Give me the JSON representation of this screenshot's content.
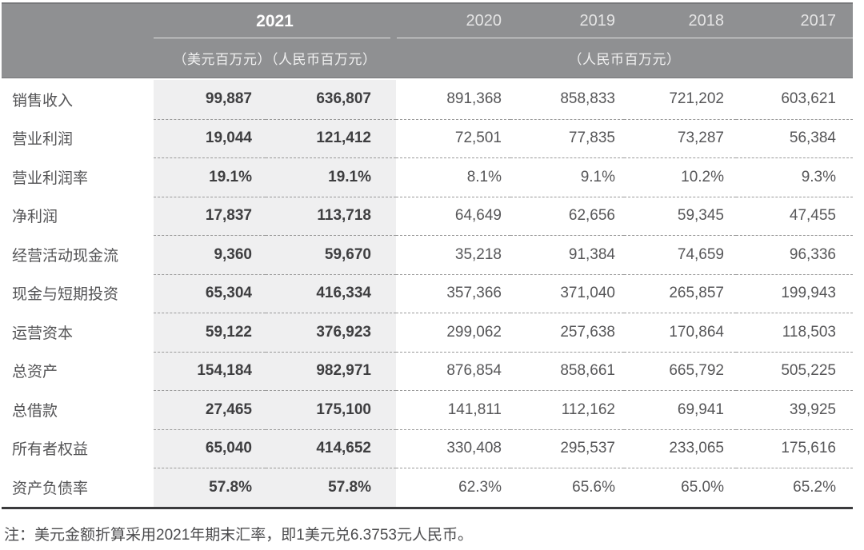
{
  "colors": {
    "header_bg": "#8F9092",
    "header_year_active": "#FFFFFF",
    "header_year_other": "#E5E5E5",
    "header_units": "#F1F1F1",
    "header_underline": "#E2E2E2",
    "row_shade": "#EFEFF0",
    "text_label": "#545456",
    "text_value": "#565658",
    "text_value_bold": "#3E3E40",
    "dashed_line": "#9A9A9A",
    "bottom_border": "#3B3B3D",
    "note_text": "#4B4B4D"
  },
  "table": {
    "header": {
      "year_highlight": "2021",
      "other_years": [
        "2020",
        "2019",
        "2018",
        "2017"
      ],
      "unit_highlight": "（美元百万元）（人民币百万元）",
      "unit_other": "（人民币百万元）"
    },
    "rows": [
      {
        "label": "销售收入",
        "usd": "99,887",
        "rmb": "636,807",
        "y2020": "891,368",
        "y2019": "858,833",
        "y2018": "721,202",
        "y2017": "603,621"
      },
      {
        "label": "营业利润",
        "usd": "19,044",
        "rmb": "121,412",
        "y2020": "72,501",
        "y2019": "77,835",
        "y2018": "73,287",
        "y2017": "56,384"
      },
      {
        "label": "营业利润率",
        "usd": "19.1%",
        "rmb": "19.1%",
        "y2020": "8.1%",
        "y2019": "9.1%",
        "y2018": "10.2%",
        "y2017": "9.3%"
      },
      {
        "label": "净利润",
        "usd": "17,837",
        "rmb": "113,718",
        "y2020": "64,649",
        "y2019": "62,656",
        "y2018": "59,345",
        "y2017": "47,455"
      },
      {
        "label": "经营活动现金流",
        "usd": "9,360",
        "rmb": "59,670",
        "y2020": "35,218",
        "y2019": "91,384",
        "y2018": "74,659",
        "y2017": "96,336"
      },
      {
        "label": "现金与短期投资",
        "usd": "65,304",
        "rmb": "416,334",
        "y2020": "357,366",
        "y2019": "371,040",
        "y2018": "265,857",
        "y2017": "199,943"
      },
      {
        "label": "运营资本",
        "usd": "59,122",
        "rmb": "376,923",
        "y2020": "299,062",
        "y2019": "257,638",
        "y2018": "170,864",
        "y2017": "118,503"
      },
      {
        "label": "总资产",
        "usd": "154,184",
        "rmb": "982,971",
        "y2020": "876,854",
        "y2019": "858,661",
        "y2018": "665,792",
        "y2017": "505,225"
      },
      {
        "label": "总借款",
        "usd": "27,465",
        "rmb": "175,100",
        "y2020": "141,811",
        "y2019": "112,162",
        "y2018": "69,941",
        "y2017": "39,925"
      },
      {
        "label": "所有者权益",
        "usd": "65,040",
        "rmb": "414,652",
        "y2020": "330,408",
        "y2019": "295,537",
        "y2018": "233,065",
        "y2017": "175,616"
      },
      {
        "label": "资产负债率",
        "usd": "57.8%",
        "rmb": "57.8%",
        "y2020": "62.3%",
        "y2019": "65.6%",
        "y2018": "65.0%",
        "y2017": "65.2%"
      }
    ],
    "note": "注：美元金额折算采用2021年期末汇率，即1美元兑6.3753元人民币。"
  }
}
